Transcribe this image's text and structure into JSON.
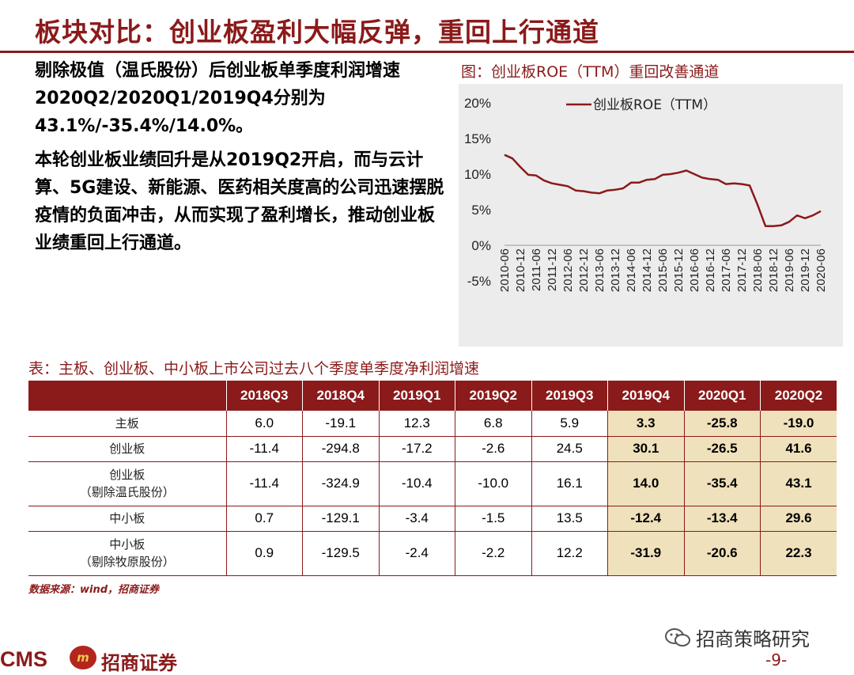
{
  "title": "板块对比：创业板盈利大幅反弹，重回上行通道",
  "intro": {
    "p1": "剔除极值（温氏股份）后创业板单季度利润增速2020Q2/2020Q1/2019Q4分别为43.1%/-35.4%/14.0%。",
    "p2": "本轮创业板业绩回升是从2019Q2开启，而与云计算、5G建设、新能源、医药相关度高的公司迅速摆脱疫情的负面冲击，从而实现了盈利增长，推动创业板业绩重回上行通道。"
  },
  "chart_caption": "图：创业板ROE（TTM）重回改善通道",
  "chart_data": {
    "type": "line",
    "x": [
      "2010-06",
      "2010-09",
      "2010-12",
      "2011-03",
      "2011-06",
      "2011-09",
      "2011-12",
      "2012-03",
      "2012-06",
      "2012-09",
      "2012-12",
      "2013-03",
      "2013-06",
      "2013-09",
      "2013-12",
      "2014-03",
      "2014-06",
      "2014-09",
      "2014-12",
      "2015-03",
      "2015-06",
      "2015-09",
      "2015-12",
      "2016-03",
      "2016-06",
      "2016-09",
      "2016-12",
      "2017-03",
      "2017-06",
      "2017-09",
      "2017-12",
      "2018-03",
      "2018-06",
      "2018-09",
      "2018-12",
      "2019-03",
      "2019-06",
      "2019-09",
      "2019-12",
      "2020-03",
      "2020-06"
    ],
    "x_tick_labels": [
      "2010-06",
      "2010-12",
      "2011-06",
      "2011-12",
      "2012-06",
      "2012-12",
      "2013-06",
      "2013-12",
      "2014-06",
      "2014-12",
      "2015-06",
      "2015-12",
      "2016-06",
      "2016-12",
      "2017-06",
      "2017-12",
      "2018-06",
      "2018-12",
      "2019-06",
      "2019-12",
      "2020-06"
    ],
    "series": [
      {
        "name": "创业板ROE（TTM）",
        "color": "#8b1a1a",
        "values": [
          12.7,
          12.2,
          11.0,
          9.9,
          9.8,
          9.1,
          8.7,
          8.5,
          8.3,
          7.7,
          7.6,
          7.4,
          7.3,
          7.7,
          7.8,
          8.0,
          8.8,
          8.8,
          9.2,
          9.3,
          9.9,
          10.0,
          10.2,
          10.5,
          10.0,
          9.5,
          9.3,
          9.2,
          8.6,
          8.7,
          8.6,
          8.4,
          5.7,
          2.7,
          2.7,
          2.8,
          3.3,
          4.2,
          3.8,
          4.2,
          4.8
        ]
      }
    ],
    "y_ticks": [
      "20%",
      "15%",
      "10%",
      "5%",
      "0%",
      "-5%"
    ],
    "ylim": [
      -5,
      20
    ],
    "legend_position": "top"
  },
  "table_caption": "表：主板、创业板、中小板上市公司过去八个季度单季度净利润增速",
  "table": {
    "headers": [
      "",
      "2018Q3",
      "2018Q4",
      "2019Q1",
      "2019Q2",
      "2019Q3",
      "2019Q4",
      "2020Q1",
      "2020Q2"
    ],
    "rows": [
      {
        "label1": "主板",
        "label2": "",
        "values": [
          "6.0",
          "-19.1",
          "12.3",
          "6.8",
          "5.9",
          "3.3",
          "-25.8",
          "-19.0"
        ]
      },
      {
        "label1": "创业板",
        "label2": "",
        "values": [
          "-11.4",
          "-294.8",
          "-17.2",
          "-2.6",
          "24.5",
          "30.1",
          "-26.5",
          "41.6"
        ]
      },
      {
        "label1": "创业板",
        "label2": "（剔除温氏股份）",
        "values": [
          "-11.4",
          "-324.9",
          "-10.4",
          "-10.0",
          "16.1",
          "14.0",
          "-35.4",
          "43.1"
        ]
      },
      {
        "label1": "中小板",
        "label2": "",
        "values": [
          "0.7",
          "-129.1",
          "-3.4",
          "-1.5",
          "13.5",
          "-12.4",
          "-13.4",
          "29.6"
        ]
      },
      {
        "label1": "中小板",
        "label2": "（剔除牧原股份）",
        "values": [
          "0.9",
          "-129.5",
          "-2.4",
          "-2.2",
          "12.2",
          "-31.9",
          "-20.6",
          "22.3"
        ]
      }
    ],
    "highlight_color": "#efe1bb",
    "header_color": "#8b1a1a"
  },
  "source": "数据来源：wind，招商证券",
  "footer": {
    "brand_en": "CMS",
    "brand_badge": "m",
    "brand_cn": "招商证券",
    "wechat": "招商策略研究",
    "page": "-9-"
  }
}
